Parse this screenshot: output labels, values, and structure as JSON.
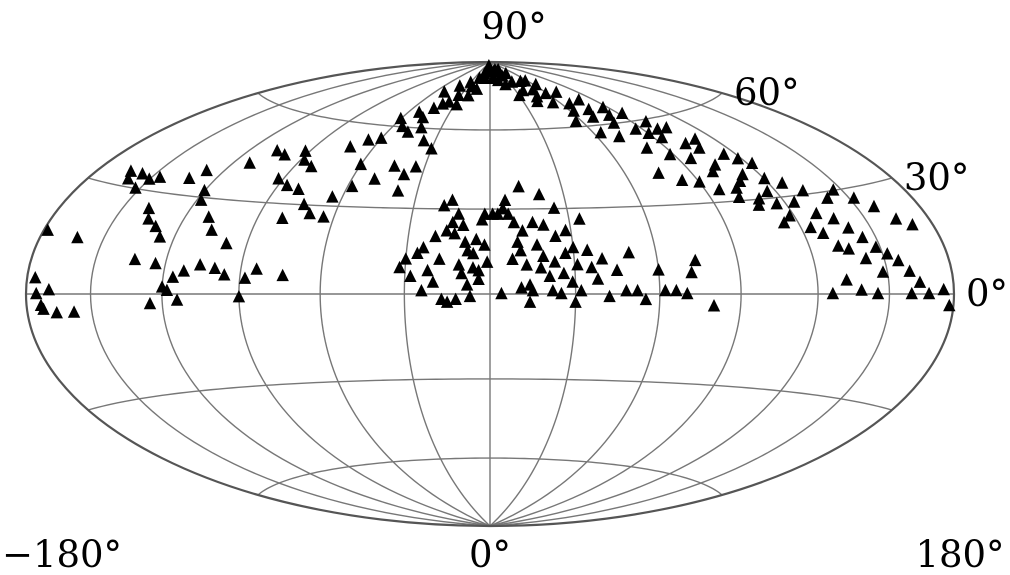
{
  "chart_data": {
    "type": "scatter",
    "projection": "Hammer-Aitoff (all-sky)",
    "title": "",
    "xlabel": "",
    "ylabel": "",
    "marker": "filled-triangle",
    "marker_color": "#000000",
    "grid": true,
    "legend": "none",
    "xlim": [
      -180,
      180
    ],
    "ylim": [
      -90,
      90
    ],
    "lon_ticks": [
      -180,
      0,
      180
    ],
    "lat_ticks": [
      0,
      30,
      60,
      90
    ],
    "lon_tick_labels": [
      "−180°",
      "0°",
      "180°"
    ],
    "lat_tick_labels": [
      "0°",
      "30°",
      "60°",
      "90°"
    ],
    "series": [
      {
        "points": [
          [
            -178,
            16
          ],
          [
            -176,
            4
          ],
          [
            -175,
            0
          ],
          [
            -173,
            -3
          ],
          [
            -172,
            -4
          ],
          [
            -169,
            1
          ],
          [
            -166,
            -5
          ],
          [
            -162,
            15
          ],
          [
            -158,
            -5
          ],
          [
            -163,
            34
          ],
          [
            -160,
            32
          ],
          [
            -156,
            34
          ],
          [
            -152,
            30
          ],
          [
            -150,
            33
          ],
          [
            -146,
            34
          ],
          [
            -138,
            25
          ],
          [
            -135,
            22
          ],
          [
            -130,
            20
          ],
          [
            -126,
            17
          ],
          [
            -133,
            10
          ],
          [
            -124,
            9
          ],
          [
            -132,
            35
          ],
          [
            -128,
            38
          ],
          [
            -120,
            32
          ],
          [
            -118,
            29
          ],
          [
            -110,
            24
          ],
          [
            -106,
            20
          ],
          [
            -98,
            16
          ],
          [
            -125,
            -3
          ],
          [
            -120,
            2
          ],
          [
            -116,
            5
          ],
          [
            -112,
            7
          ],
          [
            -106,
            9
          ],
          [
            -96,
            6
          ],
          [
            -88,
            5
          ],
          [
            -84,
            8
          ],
          [
            -112,
            42
          ],
          [
            -106,
            47
          ],
          [
            -100,
            46
          ],
          [
            -92,
            48
          ],
          [
            -88,
            45
          ],
          [
            -82,
            43
          ],
          [
            -92,
            38
          ],
          [
            -86,
            36
          ],
          [
            -80,
            35
          ],
          [
            -74,
            30
          ],
          [
            -70,
            27
          ],
          [
            -64,
            26
          ],
          [
            -118,
            1
          ],
          [
            -114,
            -2
          ],
          [
            -100,
            8
          ],
          [
            -90,
            -1
          ],
          [
            -74,
            6
          ],
          [
            -80,
            25
          ],
          [
            -64,
            33
          ],
          [
            -58,
            37
          ],
          [
            -50,
            40
          ],
          [
            -44,
            45
          ],
          [
            -38,
            42
          ],
          [
            -34,
            45
          ],
          [
            -72,
            51
          ],
          [
            -66,
            54
          ],
          [
            -60,
            55
          ],
          [
            -54,
            60
          ],
          [
            -48,
            58
          ],
          [
            -42,
            60
          ],
          [
            -36,
            55
          ],
          [
            -30,
            52
          ],
          [
            -60,
            63
          ],
          [
            -52,
            66
          ],
          [
            -44,
            68
          ],
          [
            -36,
            71
          ],
          [
            -28,
            70
          ],
          [
            -22,
            74
          ],
          [
            -16,
            77
          ],
          [
            -10,
            82
          ],
          [
            -4,
            86
          ],
          [
            -50,
            75
          ],
          [
            -40,
            78
          ],
          [
            -30,
            80
          ],
          [
            -20,
            82
          ],
          [
            -14,
            84
          ],
          [
            -8,
            88
          ],
          [
            -24,
            78
          ],
          [
            -32,
            74
          ],
          [
            -40,
            70
          ],
          [
            -46,
            64
          ],
          [
            -38,
            36
          ],
          [
            -32,
            9
          ],
          [
            -30,
            12
          ],
          [
            -28,
            6
          ],
          [
            -26,
            14
          ],
          [
            -24,
            16
          ],
          [
            -22,
            8
          ],
          [
            -20,
            4
          ],
          [
            -18,
            12
          ],
          [
            -16,
            22
          ],
          [
            -14,
            25
          ],
          [
            -12,
            28
          ],
          [
            -11,
            10
          ],
          [
            -10,
            7
          ],
          [
            -9,
            18
          ],
          [
            -8,
            3
          ],
          [
            -7,
            -1
          ],
          [
            -6,
            14
          ],
          [
            -5,
            19
          ],
          [
            -4,
            8
          ],
          [
            -3,
            26
          ],
          [
            -2,
            17
          ],
          [
            -1,
            11
          ],
          [
            -18,
            31
          ],
          [
            -15,
            33
          ],
          [
            -13,
            21
          ],
          [
            -12,
            -2
          ],
          [
            -10,
            24
          ],
          [
            -8,
            15
          ],
          [
            -6,
            9
          ],
          [
            -4,
            5
          ],
          [
            -2,
            28
          ],
          [
            -24,
            1
          ],
          [
            -17,
            -2
          ],
          [
            -15,
            -3
          ],
          [
            -20,
            20
          ],
          [
            1,
            28
          ],
          [
            3,
            28
          ],
          [
            5,
            30
          ],
          [
            7,
            28
          ],
          [
            9,
            25
          ],
          [
            10,
            18
          ],
          [
            11,
            15
          ],
          [
            12,
            22
          ],
          [
            13,
            10
          ],
          [
            14,
            3
          ],
          [
            15,
            1
          ],
          [
            16,
            25
          ],
          [
            17,
            17
          ],
          [
            18,
            9
          ],
          [
            19,
            13
          ],
          [
            20,
            24
          ],
          [
            21,
            6
          ],
          [
            22,
            1
          ],
          [
            23,
            11
          ],
          [
            24,
            20
          ],
          [
            25,
            0
          ],
          [
            26,
            7
          ],
          [
            27,
            14
          ],
          [
            28,
            22
          ],
          [
            29,
            4
          ],
          [
            30,
            16
          ],
          [
            31,
            10
          ],
          [
            32,
            1
          ],
          [
            34,
            26
          ],
          [
            35,
            15
          ],
          [
            36,
            9
          ],
          [
            38,
            5
          ],
          [
            40,
            12
          ],
          [
            42,
            -1
          ],
          [
            45,
            8
          ],
          [
            48,
            1
          ],
          [
            52,
            1
          ],
          [
            55,
            -2
          ],
          [
            60,
            8
          ],
          [
            62,
            1
          ],
          [
            66,
            1
          ],
          [
            70,
            0
          ],
          [
            72,
            7
          ],
          [
            74,
            11
          ],
          [
            80,
            -4
          ],
          [
            6,
            33
          ],
          [
            12,
            38
          ],
          [
            20,
            35
          ],
          [
            25,
            30
          ],
          [
            8,
            12
          ],
          [
            4,
            0
          ],
          [
            11,
            2
          ],
          [
            14,
            -3
          ],
          [
            30,
            -3
          ],
          [
            50,
            14
          ],
          [
            2,
            86
          ],
          [
            6,
            82
          ],
          [
            10,
            85
          ],
          [
            14,
            81
          ],
          [
            18,
            86
          ],
          [
            22,
            79
          ],
          [
            26,
            83
          ],
          [
            30,
            74
          ],
          [
            34,
            80
          ],
          [
            38,
            76
          ],
          [
            42,
            71
          ],
          [
            46,
            73
          ],
          [
            50,
            76
          ],
          [
            54,
            70
          ],
          [
            58,
            74
          ],
          [
            62,
            66
          ],
          [
            66,
            69
          ],
          [
            70,
            63
          ],
          [
            74,
            66
          ],
          [
            78,
            60
          ],
          [
            82,
            63
          ],
          [
            86,
            57
          ],
          [
            90,
            55
          ],
          [
            94,
            53
          ],
          [
            98,
            56
          ],
          [
            102,
            50
          ],
          [
            106,
            48
          ],
          [
            110,
            51
          ],
          [
            114,
            45
          ],
          [
            118,
            43
          ],
          [
            122,
            41
          ],
          [
            56,
            62
          ],
          [
            64,
            57
          ],
          [
            72,
            55
          ],
          [
            80,
            50
          ],
          [
            88,
            47
          ],
          [
            96,
            45
          ],
          [
            104,
            42
          ],
          [
            112,
            38
          ],
          [
            120,
            36
          ],
          [
            126,
            34
          ],
          [
            132,
            31
          ],
          [
            100,
            40
          ],
          [
            108,
            36
          ],
          [
            116,
            32
          ],
          [
            124,
            28
          ],
          [
            130,
            24
          ],
          [
            136,
            22
          ],
          [
            140,
            19
          ],
          [
            144,
            16
          ],
          [
            148,
            13
          ],
          [
            152,
            11
          ],
          [
            156,
            9
          ],
          [
            160,
            6
          ],
          [
            164,
            3
          ],
          [
            168,
            0
          ],
          [
            175,
            1
          ],
          [
            178,
            -3
          ],
          [
            140,
            28
          ],
          [
            146,
            30
          ],
          [
            152,
            27
          ],
          [
            158,
            24
          ],
          [
            164,
            20
          ],
          [
            170,
            18
          ],
          [
            136,
            13
          ],
          [
            142,
            10
          ],
          [
            148,
            6
          ],
          [
            128,
            18
          ],
          [
            132,
            14
          ],
          [
            118,
            24
          ],
          [
            124,
            20
          ],
          [
            110,
            30
          ],
          [
            116,
            28
          ],
          [
            104,
            34
          ],
          [
            126,
            0
          ],
          [
            132,
            4
          ],
          [
            138,
            1
          ],
          [
            145,
            0
          ],
          [
            160,
            0
          ],
          [
            75,
            41
          ],
          [
            83,
            38
          ],
          [
            90,
            37
          ],
          [
            96,
            34
          ],
          [
            102,
            31
          ],
          [
            108,
            28
          ],
          [
            114,
            22
          ],
          [
            92,
            63
          ],
          [
            98,
            59
          ],
          [
            104,
            56
          ],
          [
            62,
            78
          ],
          [
            70,
            74
          ],
          [
            78,
            70
          ],
          [
            86,
            66
          ],
          [
            40,
            84
          ],
          [
            48,
            80
          ],
          [
            56,
            80
          ],
          [
            30,
            86
          ],
          [
            -60,
            45
          ]
        ]
      }
    ]
  }
}
